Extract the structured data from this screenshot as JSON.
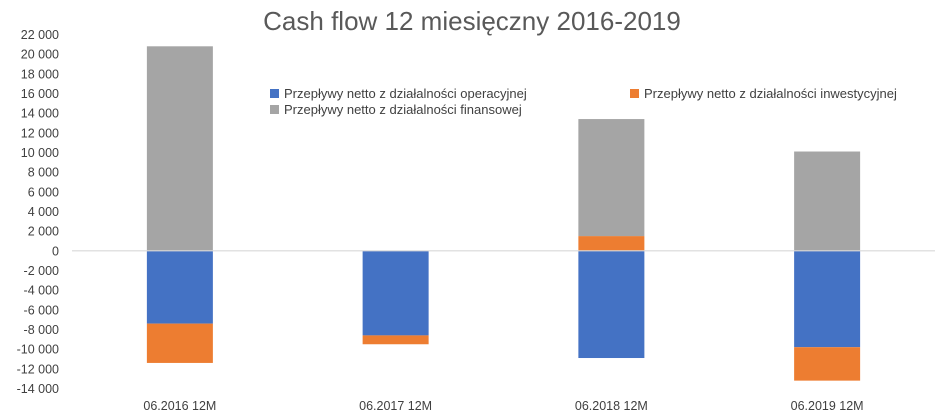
{
  "chart_data": {
    "type": "bar",
    "stacked": true,
    "title": "Cash flow 12 miesięczny 2016-2019",
    "xlabel": "",
    "ylabel": "",
    "ylim": [
      -14000,
      22000
    ],
    "ytick_step": 2000,
    "ytick_labels": [
      "22 000",
      "20 000",
      "18 000",
      "16 000",
      "14 000",
      "12 000",
      "10 000",
      "8 000",
      "6 000",
      "4 000",
      "2 000",
      "0",
      "-2 000",
      "-4 000",
      "-6 000",
      "-8 000",
      "-10 000",
      "-12 000",
      "-14 000"
    ],
    "categories": [
      "06.2016 12M",
      "06.2017 12M",
      "06.2018 12M",
      "06.2019 12M"
    ],
    "series": [
      {
        "name": "Przepływy netto z działalności operacyjnej",
        "color": "#4472C4",
        "values": [
          -7400,
          -8600,
          -10900,
          -9800
        ]
      },
      {
        "name": "Przepływy netto z działalności inwestycyjnej",
        "color": "#ED7D31",
        "values": [
          -4000,
          -900,
          1500,
          -3400
        ]
      },
      {
        "name": "Przepływy netto z działalności finansowej",
        "color": "#A5A5A5",
        "values": [
          20800,
          0,
          11900,
          10100
        ]
      }
    ],
    "legend_position": "top",
    "grid": false
  }
}
